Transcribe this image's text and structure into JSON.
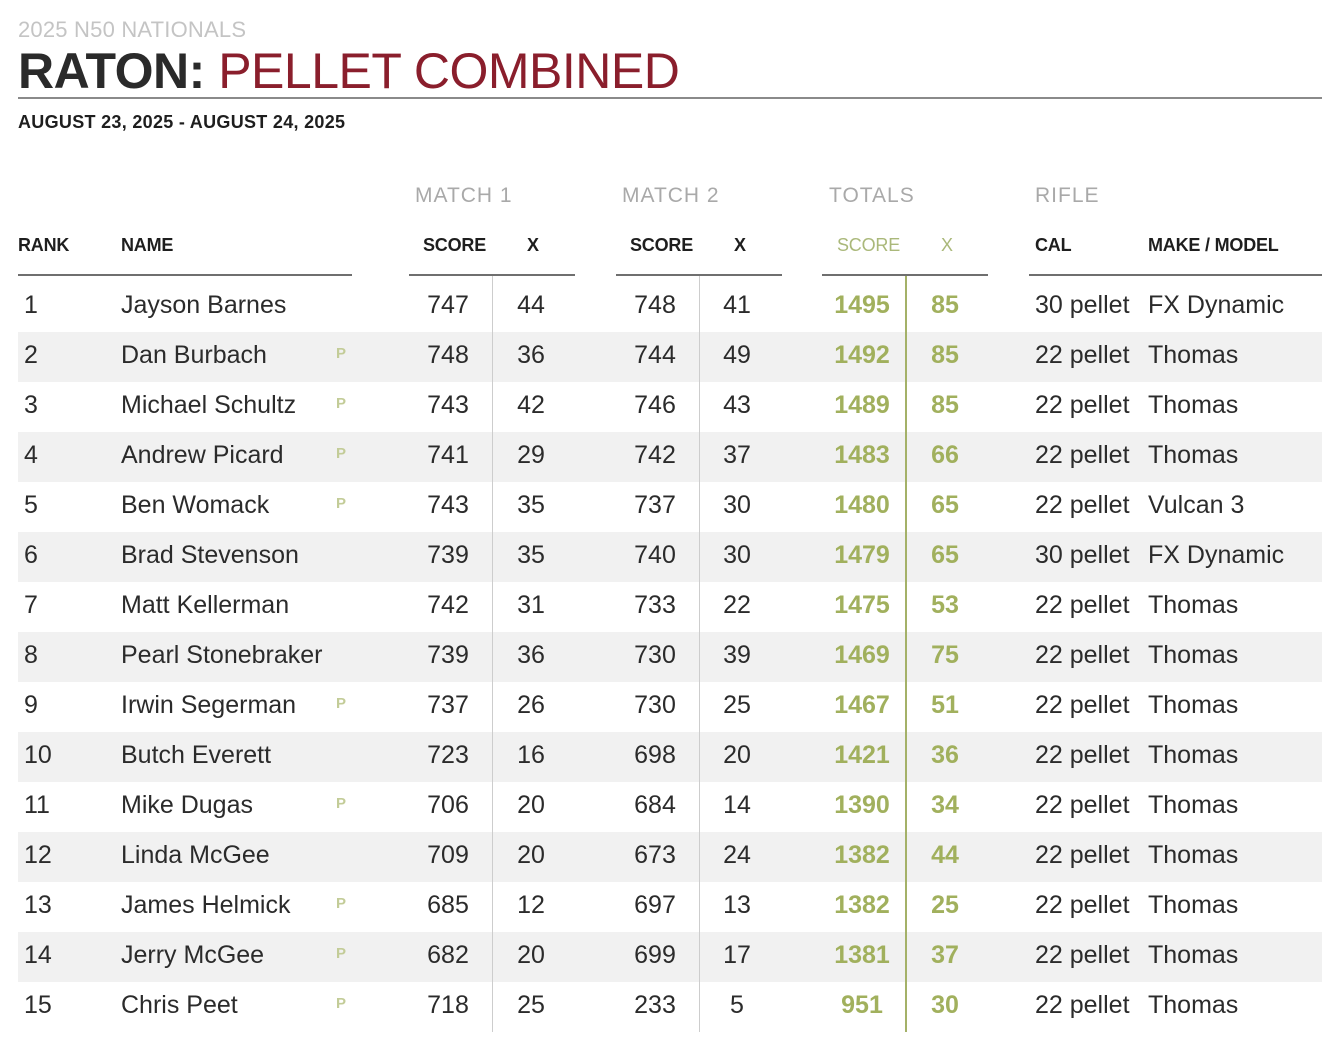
{
  "header": {
    "event": "2025 N50 NATIONALS",
    "title_bold": "RATON:",
    "title_rest": "PELLET COMBINED",
    "dates": "AUGUST 23, 2025 - AUGUST 24, 2025"
  },
  "groups": {
    "match1": "MATCH 1",
    "match2": "MATCH 2",
    "totals": "TOTALS",
    "rifle": "RIFLE"
  },
  "columns": {
    "rank": "RANK",
    "name": "NAME",
    "m1_score": "SCORE",
    "m1_x": "X",
    "m2_score": "SCORE",
    "m2_x": "X",
    "t_score": "SCORE",
    "t_x": "X",
    "cal": "CAL",
    "make": "MAKE / MODEL"
  },
  "colors": {
    "title_accent": "#8a1e2c",
    "totals": "#a1b05d",
    "pro_marker": "#c3cc98",
    "row_alt": "#f1f1f1"
  },
  "rows": [
    {
      "rank": "1",
      "name": "Jayson Barnes",
      "pro": "",
      "m1_score": "747",
      "m1_x": "44",
      "m2_score": "748",
      "m2_x": "41",
      "t_score": "1495",
      "t_x": "85",
      "cal": "30 pellet",
      "make": "FX Dynamic"
    },
    {
      "rank": "2",
      "name": "Dan Burbach",
      "pro": "P",
      "m1_score": "748",
      "m1_x": "36",
      "m2_score": "744",
      "m2_x": "49",
      "t_score": "1492",
      "t_x": "85",
      "cal": "22 pellet",
      "make": "Thomas"
    },
    {
      "rank": "3",
      "name": "Michael Schultz",
      "pro": "P",
      "m1_score": "743",
      "m1_x": "42",
      "m2_score": "746",
      "m2_x": "43",
      "t_score": "1489",
      "t_x": "85",
      "cal": "22 pellet",
      "make": "Thomas"
    },
    {
      "rank": "4",
      "name": "Andrew Picard",
      "pro": "P",
      "m1_score": "741",
      "m1_x": "29",
      "m2_score": "742",
      "m2_x": "37",
      "t_score": "1483",
      "t_x": "66",
      "cal": "22 pellet",
      "make": "Thomas"
    },
    {
      "rank": "5",
      "name": "Ben Womack",
      "pro": "P",
      "m1_score": "743",
      "m1_x": "35",
      "m2_score": "737",
      "m2_x": "30",
      "t_score": "1480",
      "t_x": "65",
      "cal": "22 pellet",
      "make": "Vulcan 3"
    },
    {
      "rank": "6",
      "name": "Brad Stevenson",
      "pro": "",
      "m1_score": "739",
      "m1_x": "35",
      "m2_score": "740",
      "m2_x": "30",
      "t_score": "1479",
      "t_x": "65",
      "cal": "30 pellet",
      "make": "FX Dynamic"
    },
    {
      "rank": "7",
      "name": "Matt Kellerman",
      "pro": "",
      "m1_score": "742",
      "m1_x": "31",
      "m2_score": "733",
      "m2_x": "22",
      "t_score": "1475",
      "t_x": "53",
      "cal": "22 pellet",
      "make": "Thomas"
    },
    {
      "rank": "8",
      "name": "Pearl Stonebraker",
      "pro": "",
      "m1_score": "739",
      "m1_x": "36",
      "m2_score": "730",
      "m2_x": "39",
      "t_score": "1469",
      "t_x": "75",
      "cal": "22 pellet",
      "make": "Thomas"
    },
    {
      "rank": "9",
      "name": "Irwin Segerman",
      "pro": "P",
      "m1_score": "737",
      "m1_x": "26",
      "m2_score": "730",
      "m2_x": "25",
      "t_score": "1467",
      "t_x": "51",
      "cal": "22 pellet",
      "make": "Thomas"
    },
    {
      "rank": "10",
      "name": "Butch Everett",
      "pro": "",
      "m1_score": "723",
      "m1_x": "16",
      "m2_score": "698",
      "m2_x": "20",
      "t_score": "1421",
      "t_x": "36",
      "cal": "22 pellet",
      "make": "Thomas"
    },
    {
      "rank": "11",
      "name": "Mike Dugas",
      "pro": "P",
      "m1_score": "706",
      "m1_x": "20",
      "m2_score": "684",
      "m2_x": "14",
      "t_score": "1390",
      "t_x": "34",
      "cal": "22 pellet",
      "make": "Thomas"
    },
    {
      "rank": "12",
      "name": "Linda McGee",
      "pro": "",
      "m1_score": "709",
      "m1_x": "20",
      "m2_score": "673",
      "m2_x": "24",
      "t_score": "1382",
      "t_x": "44",
      "cal": "22 pellet",
      "make": "Thomas"
    },
    {
      "rank": "13",
      "name": "James Helmick",
      "pro": "P",
      "m1_score": "685",
      "m1_x": "12",
      "m2_score": "697",
      "m2_x": "13",
      "t_score": "1382",
      "t_x": "25",
      "cal": "22 pellet",
      "make": "Thomas"
    },
    {
      "rank": "14",
      "name": "Jerry McGee",
      "pro": "P",
      "m1_score": "682",
      "m1_x": "20",
      "m2_score": "699",
      "m2_x": "17",
      "t_score": "1381",
      "t_x": "37",
      "cal": "22 pellet",
      "make": "Thomas"
    },
    {
      "rank": "15",
      "name": "Chris Peet",
      "pro": "P",
      "m1_score": "718",
      "m1_x": "25",
      "m2_score": "233",
      "m2_x": "5",
      "t_score": "951",
      "t_x": "30",
      "cal": "22 pellet",
      "make": "Thomas"
    }
  ]
}
